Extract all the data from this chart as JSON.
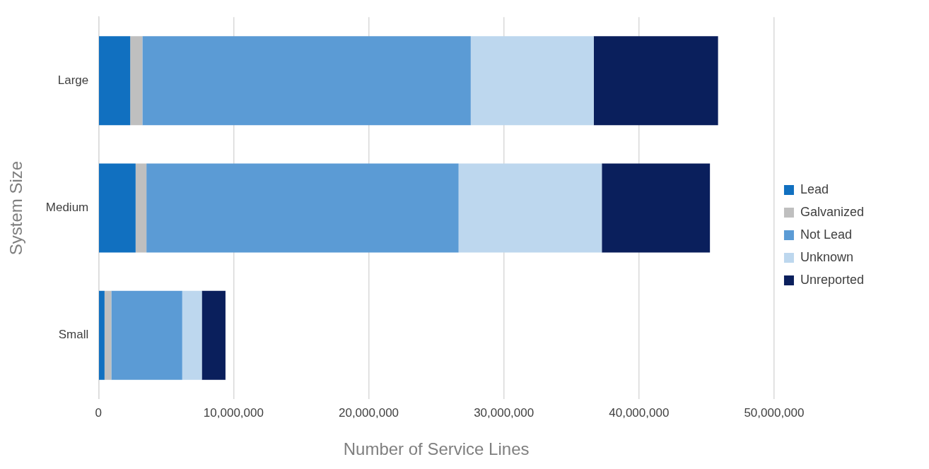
{
  "chart_data": {
    "type": "bar",
    "orientation": "horizontal",
    "stacked": true,
    "xlabel": "Number of Service Lines",
    "ylabel": "System Size",
    "categories": [
      "Large",
      "Medium",
      "Small"
    ],
    "series": [
      {
        "name": "Lead",
        "color": "#1170c0",
        "values": [
          2350000,
          2750000,
          450000
        ]
      },
      {
        "name": "Galvanized",
        "color": "#bfbfbf",
        "values": [
          900000,
          800000,
          500000
        ]
      },
      {
        "name": "Not Lead",
        "color": "#5b9bd5",
        "values": [
          24300000,
          23100000,
          5250000
        ]
      },
      {
        "name": "Unknown",
        "color": "#bdd7ee",
        "values": [
          9100000,
          10600000,
          1450000
        ]
      },
      {
        "name": "Unreported",
        "color": "#0a1f5c",
        "values": [
          9200000,
          8000000,
          1750000
        ]
      }
    ],
    "xlim": [
      0,
      50000000
    ],
    "xticks": [
      {
        "value": 0,
        "label": "0"
      },
      {
        "value": 10000000,
        "label": "10,000,000"
      },
      {
        "value": 20000000,
        "label": "20,000,000"
      },
      {
        "value": 30000000,
        "label": "30,000,000"
      },
      {
        "value": 40000000,
        "label": "40,000,000"
      },
      {
        "value": 50000000,
        "label": "50,000,000"
      }
    ],
    "grid": "x",
    "legend": "right"
  }
}
